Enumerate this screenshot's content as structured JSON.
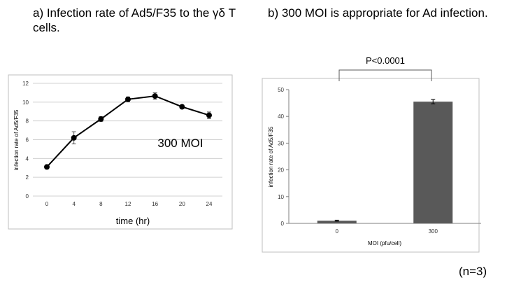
{
  "headings": {
    "a": "a) Infection rate of Ad5/F35 to the γδ T cells.",
    "b": "b) 300 MOI is appropriate for Ad infection."
  },
  "footer_note": "(n=3)",
  "colors": {
    "line": "#000000",
    "bar": "#595959",
    "grid": "#d0d0d0",
    "frame": "#bfbfbf"
  },
  "chart_data": [
    {
      "type": "line",
      "xlabel": "time (hr)",
      "ylabel": "infection rate of Ad5/F35",
      "annotation": "300 MOI",
      "x": [
        0,
        4,
        8,
        12,
        16,
        20,
        24
      ],
      "y": [
        3.1,
        6.2,
        8.2,
        10.3,
        10.65,
        9.5,
        8.6
      ],
      "error": [
        0.2,
        0.65,
        0.25,
        0.25,
        0.35,
        0.2,
        0.35
      ],
      "ylim": [
        0,
        12
      ],
      "yticks": [
        0,
        2,
        4,
        6,
        8,
        10,
        12
      ],
      "grid": true,
      "marker": "circle"
    },
    {
      "type": "bar",
      "xlabel": "MOI (pfu/cell)",
      "ylabel": "infection rate of Ad5/F35",
      "categories": [
        "0",
        "300"
      ],
      "values": [
        1.0,
        45.5
      ],
      "error": [
        0.2,
        0.8
      ],
      "ylim": [
        0,
        50
      ],
      "yticks": [
        0,
        10,
        20,
        30,
        40,
        50
      ],
      "grid": false,
      "significance": "P<0.0001"
    }
  ]
}
